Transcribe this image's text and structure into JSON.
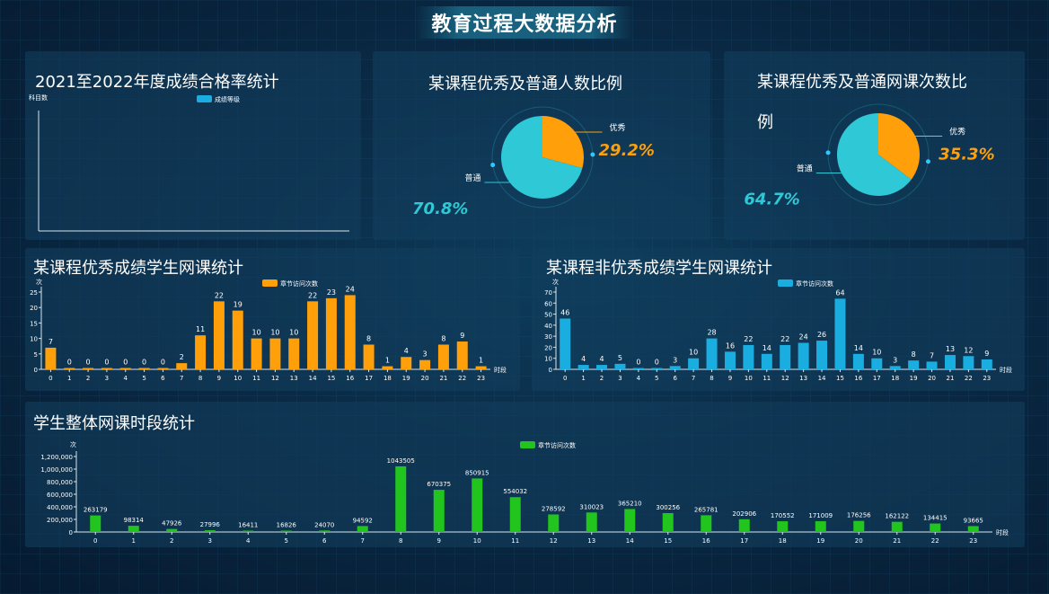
{
  "header": {
    "title": "教育过程大数据分析"
  },
  "panels": {
    "pass_rate": {
      "title": "2021至2022年度成绩合格率统计"
    },
    "people_ratio": {
      "title": "某课程优秀及普通人数比例"
    },
    "visit_ratio": {
      "title_line1": "某课程优秀及普通网课次数比",
      "title_line2": "例"
    },
    "excellent": {
      "title": "某课程优秀成绩学生网课统计"
    },
    "normal": {
      "title": "某课程非优秀成绩学生网课统计"
    },
    "overall": {
      "title": "学生整体网课时段统计"
    }
  },
  "colors": {
    "orange": "#ff9f0a",
    "cyan": "#2ec8d6",
    "blue": "#1aaee0",
    "green": "#22c41e"
  },
  "chart_data": [
    {
      "id": "pass_rate",
      "type": "bar",
      "ylabel": "科目数",
      "legend": "成绩等级",
      "legend_color": "#1aaee0",
      "categories": [],
      "values": []
    },
    {
      "id": "people_ratio",
      "type": "pie",
      "slices": [
        {
          "label": "优秀",
          "percent_label": "29.2%",
          "value": 29.2,
          "color": "#ff9f0a"
        },
        {
          "label": "普通",
          "percent_label": "70.8%",
          "value": 70.8,
          "color": "#2ec8d6"
        }
      ]
    },
    {
      "id": "visit_ratio",
      "type": "pie",
      "slices": [
        {
          "label": "优秀",
          "percent_label": "35.3%",
          "value": 35.3,
          "color": "#ff9f0a"
        },
        {
          "label": "普通",
          "percent_label": "64.7%",
          "value": 64.7,
          "color": "#2ec8d6"
        }
      ]
    },
    {
      "id": "excellent",
      "type": "bar",
      "ylabel": "次",
      "xlabel": "时段",
      "legend": "章节访问次数",
      "color": "#ff9f0a",
      "ylim": [
        0,
        25
      ],
      "yticks": [
        "0",
        "5",
        "10",
        "15",
        "20",
        "25"
      ],
      "categories": [
        "0",
        "1",
        "2",
        "3",
        "4",
        "5",
        "6",
        "7",
        "8",
        "9",
        "10",
        "11",
        "12",
        "13",
        "14",
        "15",
        "16",
        "17",
        "18",
        "19",
        "20",
        "21",
        "22",
        "23"
      ],
      "values": [
        7,
        0,
        0,
        0,
        0,
        0,
        0,
        2,
        11,
        22,
        19,
        10,
        10,
        10,
        22,
        23,
        24,
        8,
        1,
        4,
        3,
        8,
        9,
        1
      ]
    },
    {
      "id": "normal",
      "type": "bar",
      "ylabel": "次",
      "xlabel": "时段",
      "legend": "章节访问次数",
      "color": "#1aaee0",
      "ylim": [
        0,
        70
      ],
      "yticks": [
        "0",
        "10",
        "20",
        "30",
        "40",
        "50",
        "60",
        "70"
      ],
      "categories": [
        "0",
        "1",
        "2",
        "3",
        "4",
        "5",
        "6",
        "7",
        "8",
        "9",
        "10",
        "11",
        "12",
        "13",
        "14",
        "15",
        "16",
        "17",
        "18",
        "19",
        "20",
        "21",
        "22",
        "23"
      ],
      "values": [
        46,
        4,
        4,
        5,
        0,
        0,
        3,
        10,
        28,
        16,
        22,
        14,
        22,
        24,
        26,
        64,
        14,
        10,
        3,
        8,
        7,
        13,
        12,
        9
      ]
    },
    {
      "id": "overall",
      "type": "bar",
      "ylabel": "次",
      "xlabel": "时段",
      "legend": "章节访问次数",
      "color": "#22c41e",
      "ylim": [
        0,
        1200000
      ],
      "yticks": [
        "0",
        "200,000",
        "400,000",
        "600,000",
        "800,000",
        "1,000,000",
        "1,200,000"
      ],
      "categories": [
        "0",
        "1",
        "2",
        "3",
        "4",
        "5",
        "6",
        "7",
        "8",
        "9",
        "10",
        "11",
        "12",
        "13",
        "14",
        "15",
        "16",
        "17",
        "18",
        "19",
        "20",
        "21",
        "22",
        "23"
      ],
      "values": [
        263179,
        98314,
        47926,
        27996,
        16411,
        16826,
        24070,
        94592,
        1043505,
        670375,
        850915,
        554032,
        278592,
        310023,
        365210,
        300256,
        265781,
        202906,
        170552,
        171009,
        176256,
        162122,
        134415,
        93665
      ]
    }
  ]
}
